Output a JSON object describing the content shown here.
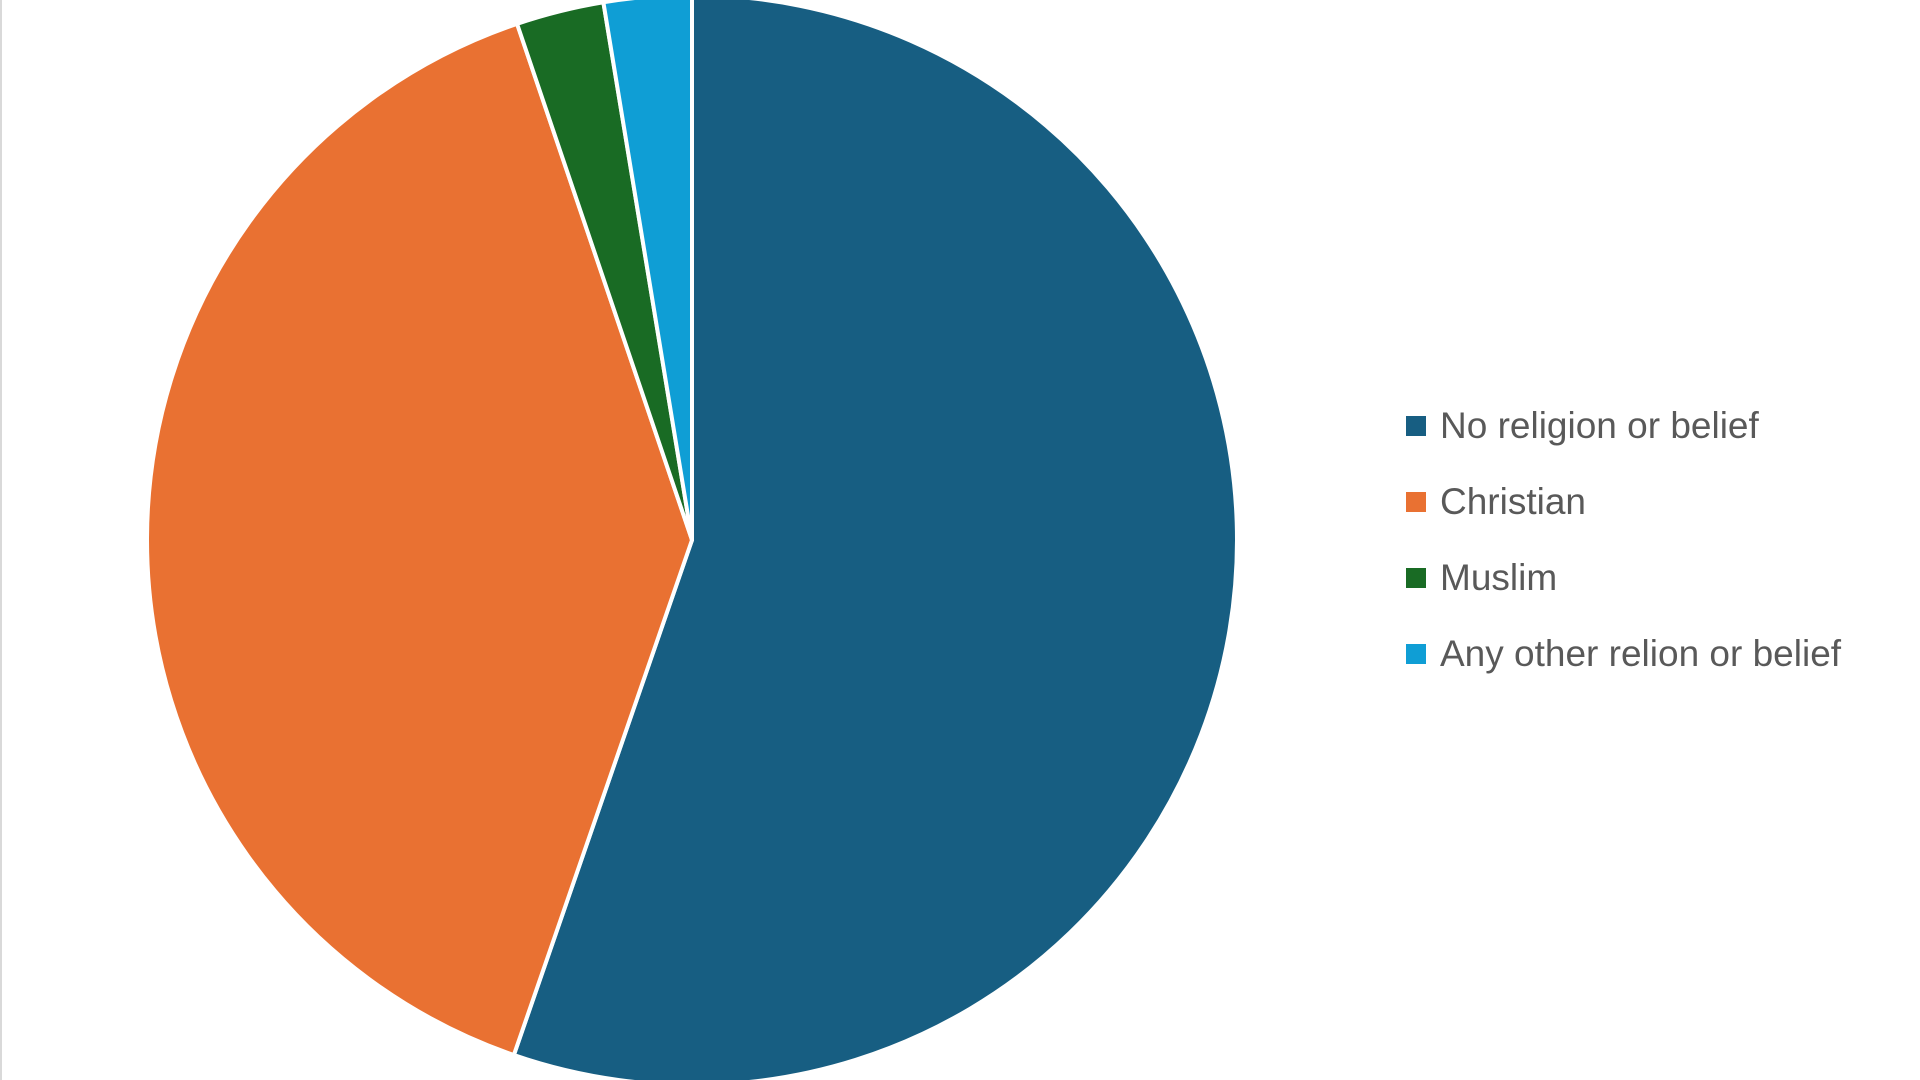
{
  "chart_data": {
    "type": "pie",
    "categories": [
      "No religion or belief",
      "Christian",
      "Muslim",
      "Any other relion or belief"
    ],
    "values": [
      55.3,
      39.5,
      2.6,
      2.6
    ],
    "colors": [
      "#175e82",
      "#e97132",
      "#196b24",
      "#0f9ed5"
    ],
    "legend": "right"
  }
}
